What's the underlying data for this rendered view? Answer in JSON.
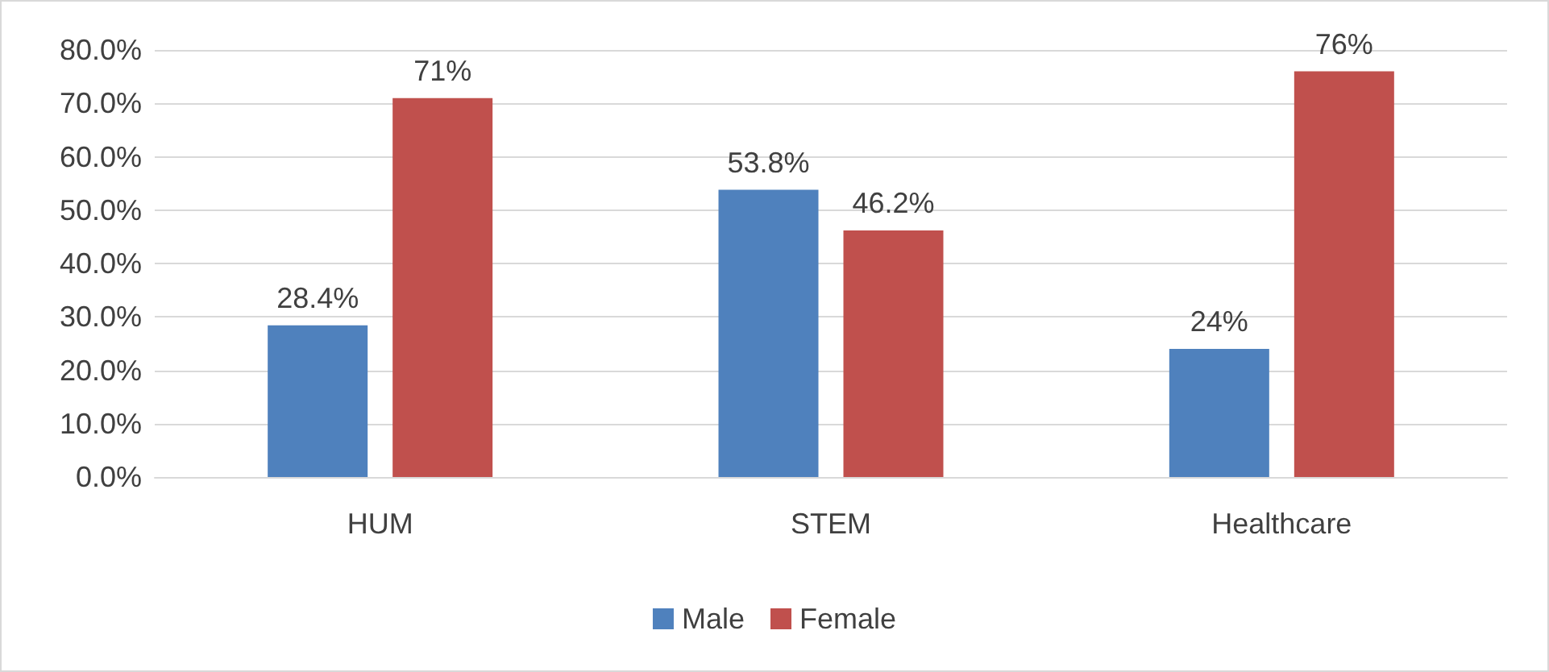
{
  "chart_data": {
    "type": "bar",
    "categories": [
      "HUM",
      "STEM",
      "Healthcare"
    ],
    "series": [
      {
        "name": "Male",
        "color": "#4f81bd",
        "values": [
          28.4,
          53.8,
          24
        ],
        "value_labels": [
          "28.4%",
          "53.8%",
          "24%"
        ]
      },
      {
        "name": "Female",
        "color": "#c0504d",
        "values": [
          71,
          46.2,
          76
        ],
        "value_labels": [
          "71%",
          "46.2%",
          "76%"
        ]
      }
    ],
    "ylim": [
      0,
      80
    ],
    "yticks": [
      {
        "value": 0,
        "label": "0.0%"
      },
      {
        "value": 10,
        "label": "10.0%"
      },
      {
        "value": 20,
        "label": "20.0%"
      },
      {
        "value": 30,
        "label": "30.0%"
      },
      {
        "value": 40,
        "label": "40.0%"
      },
      {
        "value": 50,
        "label": "50.0%"
      },
      {
        "value": 60,
        "label": "60.0%"
      },
      {
        "value": 70,
        "label": "70.0%"
      },
      {
        "value": 80,
        "label": "80.0%"
      }
    ],
    "grid": "y",
    "legend": "bottom"
  }
}
